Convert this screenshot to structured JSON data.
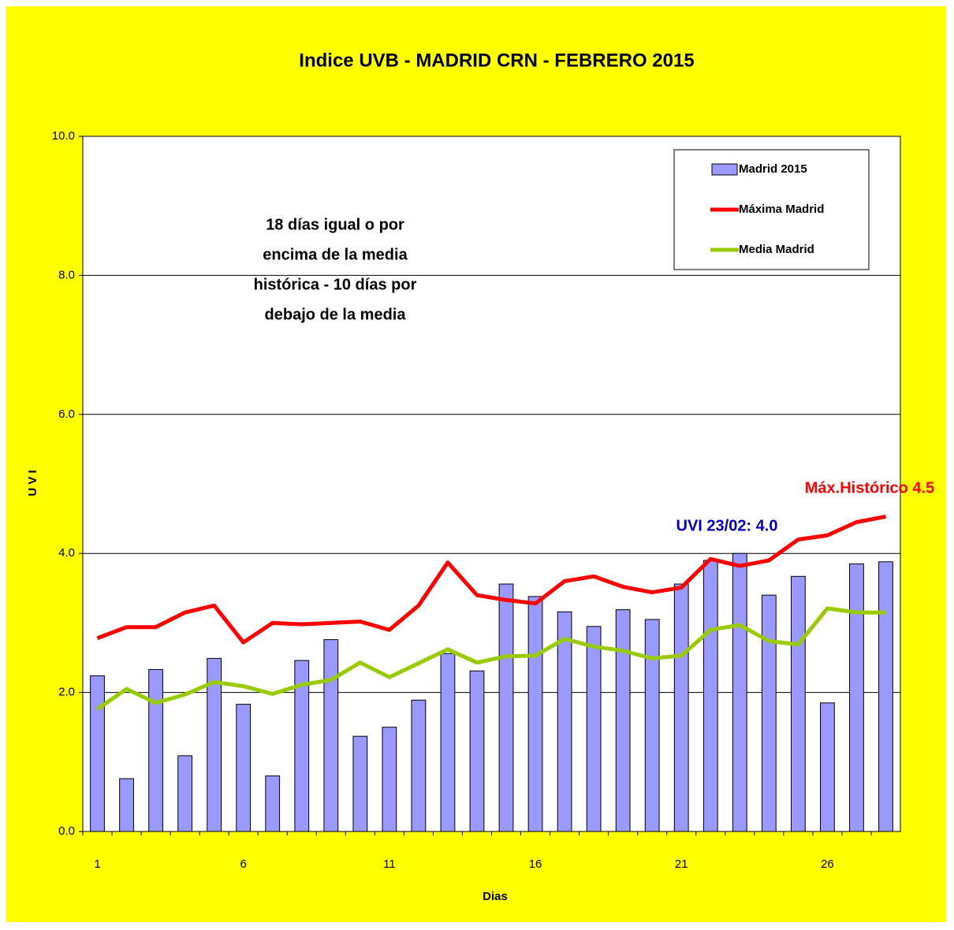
{
  "chart_data": {
    "type": "bar-line",
    "title": "Indice UVB -  MADRID CRN -  FEBRERO  2015",
    "x_label": "Dias",
    "y_label": "U V I",
    "categories": [
      "1",
      null,
      null,
      null,
      null,
      "6",
      null,
      null,
      null,
      null,
      "11",
      null,
      null,
      null,
      null,
      "16",
      null,
      null,
      null,
      null,
      "21",
      null,
      null,
      null,
      null,
      "26",
      null,
      null
    ],
    "series": [
      {
        "name": "Madrid 2015",
        "kind": "bar",
        "color": "#9999ff",
        "values": [
          2.24,
          0.76,
          2.33,
          1.09,
          2.49,
          1.83,
          0.8,
          2.46,
          2.76,
          1.37,
          1.5,
          1.89,
          2.56,
          2.31,
          3.56,
          3.38,
          3.16,
          2.95,
          3.19,
          3.05,
          3.56,
          3.9,
          4.0,
          3.4,
          3.67,
          1.85,
          3.85,
          3.88
        ]
      },
      {
        "name": "Máxima Madrid",
        "kind": "line",
        "color": "#ff0000",
        "values": [
          2.78,
          2.94,
          2.94,
          3.15,
          3.25,
          2.72,
          3.0,
          2.98,
          3.0,
          3.02,
          2.9,
          3.25,
          3.87,
          3.4,
          3.33,
          3.28,
          3.6,
          3.67,
          3.52,
          3.44,
          3.51,
          3.92,
          3.82,
          3.9,
          4.2,
          4.26,
          4.45,
          4.53
        ]
      },
      {
        "name": "Media Madrid",
        "kind": "line",
        "color": "#99cc00",
        "values": [
          1.76,
          2.05,
          1.85,
          1.97,
          2.15,
          2.09,
          1.98,
          2.11,
          2.18,
          2.43,
          2.22,
          2.42,
          2.62,
          2.43,
          2.52,
          2.53,
          2.77,
          2.66,
          2.6,
          2.49,
          2.53,
          2.9,
          2.97,
          2.74,
          2.69,
          3.21,
          3.15,
          3.15
        ]
      }
    ],
    "ylim": [
      0,
      10
    ],
    "yticks": [
      {
        "value": 0,
        "label": "0.0"
      },
      {
        "value": 2,
        "label": "2.0"
      },
      {
        "value": 4,
        "label": "4.0"
      },
      {
        "value": 6,
        "label": "6.0"
      },
      {
        "value": 8,
        "label": "8.0"
      },
      {
        "value": 10,
        "label": "10.0"
      }
    ],
    "grid": true,
    "legend": "upper right",
    "annotations": [
      {
        "lines": [
          "18 días igual o por",
          "encima de la media",
          "histórica - 10 días por",
          "debajo de la media"
        ],
        "color": "#000000"
      },
      {
        "lines": [
          "UVI  23/02: 4.0"
        ],
        "color": "#0000cc"
      },
      {
        "lines": [
          "Máx.Histórico 4.5"
        ],
        "color": "#ff0000"
      }
    ]
  }
}
